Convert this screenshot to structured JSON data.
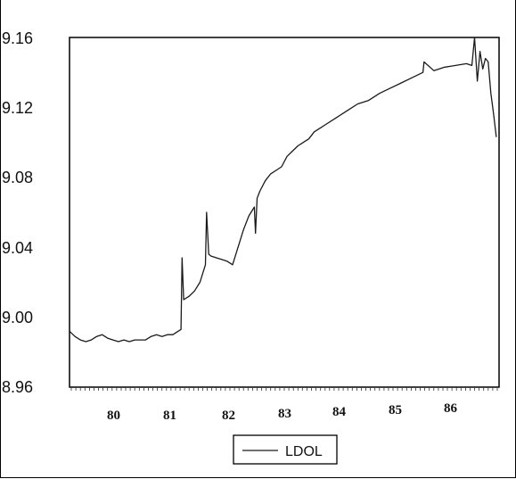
{
  "chart_data": {
    "type": "line",
    "title": "",
    "xlabel": "",
    "ylabel": "",
    "y_ticks": [
      "9.16",
      "9.12",
      "9.08",
      "9.04",
      "9.00",
      "8.96"
    ],
    "x_ticks": [
      "80",
      "81",
      "82",
      "83",
      "84",
      "85",
      "86"
    ],
    "ylim": [
      8.96,
      9.16
    ],
    "xlim": [
      79.3,
      87.2
    ],
    "grid": false,
    "legend_position": "bottom-center",
    "series": [
      {
        "name": "LDOL",
        "color": "#1a1a1a",
        "x": [
          79.3,
          79.4,
          79.5,
          79.6,
          79.7,
          79.8,
          79.9,
          80.0,
          80.1,
          80.2,
          80.3,
          80.4,
          80.5,
          80.6,
          80.7,
          80.8,
          80.9,
          81.0,
          81.1,
          81.2,
          81.35,
          81.37,
          81.4,
          81.5,
          81.6,
          81.7,
          81.8,
          81.82,
          81.86,
          81.9,
          82.0,
          82.1,
          82.2,
          82.3,
          82.4,
          82.5,
          82.6,
          82.7,
          82.72,
          82.75,
          82.8,
          82.9,
          83.0,
          83.1,
          83.2,
          83.3,
          83.4,
          83.5,
          83.6,
          83.7,
          83.8,
          83.9,
          84.0,
          84.2,
          84.4,
          84.6,
          84.8,
          85.0,
          85.2,
          85.4,
          85.6,
          85.8,
          85.82,
          86.0,
          86.2,
          86.4,
          86.6,
          86.7,
          86.75,
          86.8,
          86.85,
          86.9,
          86.95,
          87.0,
          87.05,
          87.1,
          87.15
        ],
        "y": [
          8.992,
          8.989,
          8.987,
          8.986,
          8.987,
          8.989,
          8.99,
          8.988,
          8.987,
          8.986,
          8.987,
          8.986,
          8.987,
          8.987,
          8.987,
          8.989,
          8.99,
          8.989,
          8.99,
          8.99,
          8.993,
          9.034,
          9.01,
          9.012,
          9.015,
          9.02,
          9.03,
          9.06,
          9.036,
          9.035,
          9.034,
          9.033,
          9.032,
          9.03,
          9.04,
          9.05,
          9.058,
          9.063,
          9.048,
          9.068,
          9.072,
          9.078,
          9.082,
          9.084,
          9.086,
          9.092,
          9.095,
          9.098,
          9.1,
          9.102,
          9.106,
          9.108,
          9.11,
          9.114,
          9.118,
          9.122,
          9.124,
          9.128,
          9.131,
          9.134,
          9.137,
          9.14,
          9.146,
          9.141,
          9.143,
          9.144,
          9.145,
          9.144,
          9.16,
          9.135,
          9.152,
          9.142,
          9.148,
          9.146,
          9.128,
          9.116,
          9.103
        ]
      }
    ]
  }
}
